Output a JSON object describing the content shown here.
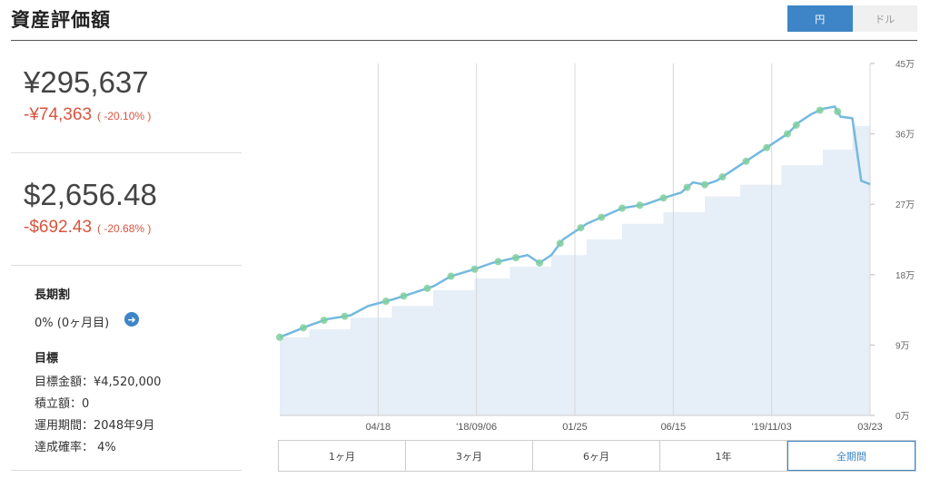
{
  "header": {
    "title": "資産評価額",
    "currency_toggle": [
      {
        "label": "円",
        "active": true
      },
      {
        "label": "ドル",
        "active": false
      }
    ]
  },
  "summary": {
    "jpy": {
      "amount": "¥295,637",
      "change": "-¥74,363",
      "change_pct": "( -20.10% )"
    },
    "usd": {
      "amount": "$2,656.48",
      "change": "-$692.43",
      "change_pct": "( -20.68% )"
    }
  },
  "long_term": {
    "heading": "長期割",
    "value": "0% (0ヶ月目)"
  },
  "goal": {
    "heading": "目標",
    "target_amount": "目標金額：¥4,520,000",
    "accumulated": "積立額：0",
    "period": "運用期間：2048年9月",
    "probability": "達成確率： 4%"
  },
  "range_buttons": [
    {
      "label": "1ヶ月",
      "active": false
    },
    {
      "label": "3ヶ月",
      "active": false
    },
    {
      "label": "6ヶ月",
      "active": false
    },
    {
      "label": "1年",
      "active": false
    },
    {
      "label": "全期間",
      "active": true
    }
  ],
  "colors": {
    "accent": "#3d85c6",
    "negative": "#d9543e",
    "line": "#74b9e0",
    "area": "#e6eef7",
    "marker": "#7fcf9c"
  },
  "chart_data": {
    "type": "area",
    "x_tick_labels": [
      "04/18",
      "'18/09/06",
      "01/25",
      "06/15",
      "'19/11/03",
      "03/23"
    ],
    "y_tick_labels": [
      "0万",
      "9万",
      "18万",
      "27万",
      "36万",
      "45万"
    ],
    "y_ticks": [
      0,
      90000,
      180000,
      270000,
      360000,
      450000
    ],
    "ylim": [
      0,
      450000
    ],
    "grid": "vertical",
    "series": [
      {
        "kind": "valuation_line",
        "t": [
          0,
          0.05,
          0.08,
          0.12,
          0.15,
          0.19,
          0.22,
          0.26,
          0.29,
          0.33,
          0.36,
          0.39,
          0.42,
          0.44,
          0.46,
          0.48,
          0.5,
          0.52,
          0.55,
          0.58,
          0.62,
          0.65,
          0.68,
          0.7,
          0.72,
          0.74,
          0.76,
          0.78,
          0.8,
          0.83,
          0.86,
          0.88,
          0.9,
          0.92,
          0.94,
          0.95,
          0.97,
          0.985,
          1.0
        ],
        "values": [
          100000,
          115000,
          123000,
          128000,
          140000,
          148000,
          155000,
          165000,
          178000,
          187000,
          195000,
          200000,
          205000,
          195000,
          205000,
          225000,
          235000,
          245000,
          255000,
          265000,
          270000,
          278000,
          285000,
          298000,
          295000,
          300000,
          310000,
          320000,
          330000,
          345000,
          360000,
          375000,
          385000,
          392000,
          395000,
          382000,
          380000,
          300000,
          295637
        ]
      },
      {
        "kind": "principal_steps",
        "t": [
          0,
          0.05,
          0.12,
          0.19,
          0.26,
          0.33,
          0.39,
          0.46,
          0.52,
          0.58,
          0.65,
          0.72,
          0.78,
          0.85,
          0.92,
          0.97,
          1.0
        ],
        "values": [
          100000,
          110000,
          125000,
          140000,
          160000,
          175000,
          190000,
          205000,
          225000,
          245000,
          260000,
          280000,
          295000,
          320000,
          340000,
          370000,
          370000
        ]
      }
    ],
    "marker_t": [
      0,
      0.04,
      0.075,
      0.11,
      0.18,
      0.21,
      0.25,
      0.29,
      0.33,
      0.37,
      0.4,
      0.44,
      0.475,
      0.51,
      0.545,
      0.58,
      0.61,
      0.65,
      0.69,
      0.72,
      0.75,
      0.79,
      0.825,
      0.86,
      0.875,
      0.915,
      0.945
    ]
  }
}
